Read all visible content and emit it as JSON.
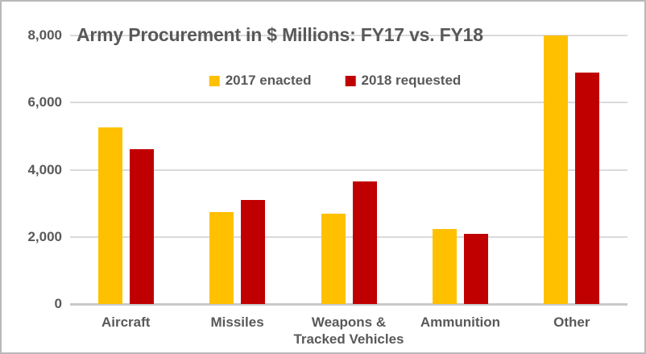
{
  "chart_data": {
    "type": "bar",
    "title": "Army Procurement in $ Millions: FY17 vs. FY18",
    "categories": [
      "Aircraft",
      "Missiles",
      "Weapons &\nTracked Vehicles",
      "Ammunition",
      "Other"
    ],
    "series": [
      {
        "name": "2017 enacted",
        "color": "#FFC000",
        "values": [
          5250,
          2750,
          2700,
          2230,
          8000
        ]
      },
      {
        "name": "2018 requested",
        "color": "#C00000",
        "values": [
          4610,
          3110,
          3650,
          2080,
          6900
        ]
      }
    ],
    "ylim": [
      0,
      8000
    ],
    "yticks": [
      0,
      2000,
      4000,
      6000,
      8000
    ],
    "ytick_labels": [
      "0",
      "2,000",
      "4,000",
      "6,000",
      "8,000"
    ],
    "grid": true,
    "legend_position": "top-center",
    "colors": {
      "text": "#595959",
      "gridline": "#dadada",
      "axis_line": "#c9c9c9",
      "background": "#ffffff",
      "frame_border": "#b9b9b9"
    }
  }
}
